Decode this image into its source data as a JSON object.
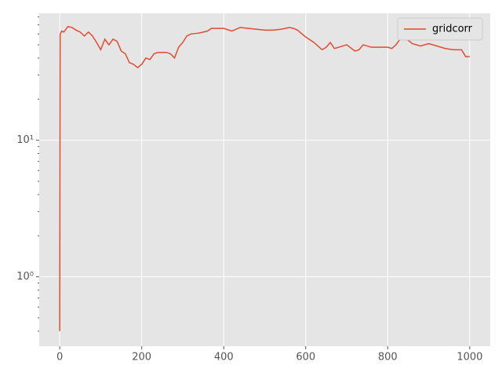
{
  "chart_data": {
    "type": "line",
    "yscale": "log",
    "grid": true,
    "legend": "upper right",
    "xlim": [
      -50,
      1050
    ],
    "ylim": [
      0.31,
      85
    ],
    "xticks": [
      0,
      200,
      400,
      600,
      800,
      1000
    ],
    "yticks": [
      {
        "value": 1,
        "label": "10⁰"
      },
      {
        "value": 10,
        "label": "10¹"
      }
    ],
    "yminorticks": [
      0.4,
      0.5,
      0.6,
      0.7,
      0.8,
      0.9,
      2,
      3,
      4,
      5,
      6,
      7,
      8,
      9,
      20,
      30,
      40,
      50,
      60,
      70,
      80
    ],
    "x": [
      0,
      1,
      5,
      10,
      20,
      30,
      40,
      50,
      60,
      70,
      80,
      90,
      100,
      110,
      120,
      130,
      140,
      150,
      160,
      170,
      180,
      190,
      200,
      210,
      220,
      230,
      240,
      260,
      270,
      280,
      290,
      300,
      310,
      320,
      340,
      360,
      370,
      380,
      400,
      420,
      440,
      460,
      480,
      500,
      520,
      540,
      560,
      570,
      580,
      600,
      620,
      640,
      650,
      660,
      670,
      680,
      700,
      720,
      730,
      740,
      760,
      780,
      800,
      810,
      820,
      830,
      840,
      850,
      860,
      880,
      900,
      920,
      940,
      960,
      980,
      990,
      1000
    ],
    "series": [
      {
        "name": "gridcorr",
        "color": "#E24A33",
        "values": [
          0.4,
          60,
          63,
          62,
          68,
          67,
          64,
          62,
          58,
          62,
          58,
          52,
          46,
          55,
          50,
          55,
          53,
          45,
          43,
          37,
          36,
          34,
          36,
          40,
          39,
          43,
          44,
          44,
          43,
          40,
          48,
          52,
          58,
          60,
          61,
          63,
          66,
          66,
          66,
          63,
          67,
          66,
          65,
          64,
          64,
          65,
          67,
          66,
          64,
          57,
          52,
          46,
          48,
          52,
          47,
          48,
          50,
          45,
          46,
          50,
          48,
          48,
          48,
          47,
          50,
          55,
          55,
          54,
          51,
          49,
          51,
          49,
          47,
          46,
          46,
          41,
          41
        ]
      }
    ]
  }
}
